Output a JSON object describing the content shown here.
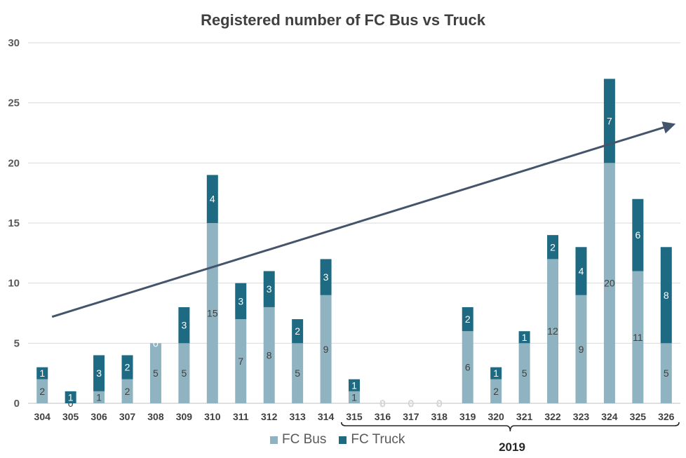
{
  "chart_data": {
    "type": "bar",
    "stacked": true,
    "title": "Registered number of FC Bus vs Truck",
    "categories": [
      "304",
      "305",
      "306",
      "307",
      "308",
      "309",
      "310",
      "311",
      "312",
      "313",
      "314",
      "315",
      "316",
      "317",
      "318",
      "319",
      "320",
      "321",
      "322",
      "323",
      "324",
      "325",
      "326"
    ],
    "series": [
      {
        "name": "FC Bus",
        "color": "#8fb3c0",
        "values": [
          2,
          0,
          1,
          2,
          5,
          5,
          15,
          7,
          8,
          5,
          9,
          1,
          0,
          0,
          0,
          6,
          2,
          5,
          12,
          9,
          20,
          11,
          5
        ]
      },
      {
        "name": "FC Truck",
        "color": "#1e6a82",
        "values": [
          1,
          1,
          3,
          2,
          0,
          3,
          4,
          3,
          3,
          2,
          3,
          1,
          0,
          0,
          0,
          2,
          1,
          1,
          2,
          4,
          7,
          6,
          8
        ]
      }
    ],
    "ylim": [
      0,
      30
    ],
    "yticks": [
      0,
      5,
      10,
      15,
      20,
      25,
      30
    ],
    "grid": true,
    "legend_position": "bottom",
    "trend_arrow": {
      "color": "#44546a",
      "from": {
        "x": "304",
        "y": 7.2
      },
      "to": {
        "x": "326",
        "y": 23.2
      }
    },
    "bracket": {
      "from": "315",
      "to": "326",
      "label": "2019"
    }
  }
}
